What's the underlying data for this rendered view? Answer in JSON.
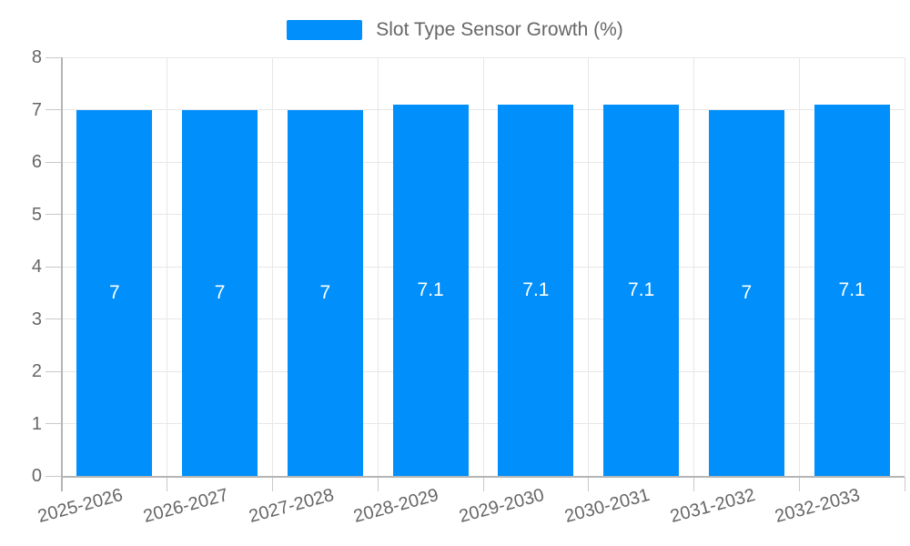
{
  "legend": {
    "label": "Slot Type Sensor Growth (%)"
  },
  "colors": {
    "bar": "#008ffb",
    "grid": "#e7e7e7",
    "tick": "#c9c9c9",
    "axis": "#b5b5b5",
    "text": "#666666",
    "value_text": "#ffffff",
    "background": "#ffffff"
  },
  "chart_data": {
    "type": "bar",
    "title": "Slot Type Sensor Growth (%)",
    "series_name": "Slot Type Sensor Growth (%)",
    "categories": [
      "2025-2026",
      "2026-2027",
      "2027-2028",
      "2028-2029",
      "2029-2030",
      "2030-2031",
      "2031-2032",
      "2032-2033"
    ],
    "values": [
      7,
      7,
      7,
      7.1,
      7.1,
      7.1,
      7,
      7.1
    ],
    "value_labels": [
      "7",
      "7",
      "7",
      "7.1",
      "7.1",
      "7.1",
      "7",
      "7.1"
    ],
    "xlabel": "",
    "ylabel": "",
    "ylim": [
      0,
      8
    ],
    "y_ticks": [
      0,
      1,
      2,
      3,
      4,
      5,
      6,
      7,
      8
    ],
    "grid": true,
    "legend_position": "top",
    "x_label_rotation": -15
  }
}
